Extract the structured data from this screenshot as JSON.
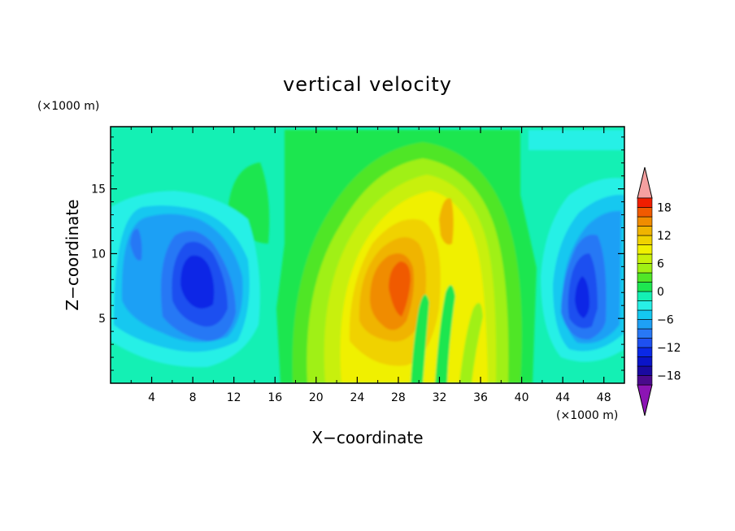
{
  "chart_data": {
    "type": "heatmap",
    "title": "vertical velocity",
    "xlabel": "X−coordinate",
    "ylabel": "Z−coordinate",
    "x_units": "(×1000 m)",
    "y_units": "(×1000 m)",
    "xlim": [
      0,
      50
    ],
    "ylim": [
      0,
      19.8
    ],
    "x_ticks": [
      4,
      8,
      12,
      16,
      20,
      24,
      28,
      32,
      36,
      40,
      44,
      48
    ],
    "y_ticks": [
      5,
      10,
      15
    ],
    "colorbar": {
      "levels": [
        -20,
        -18,
        -16,
        -14,
        -12,
        -10,
        -8,
        -6,
        -4,
        -2,
        0,
        2,
        4,
        6,
        8,
        10,
        12,
        14,
        16,
        18,
        20
      ],
      "labels": [
        18,
        12,
        6,
        0,
        -6,
        -12,
        -18
      ],
      "colors": [
        "#4a0a8c",
        "#1a0aa0",
        "#0a14c8",
        "#0a28e6",
        "#1e50f0",
        "#2878f5",
        "#1ea0f5",
        "#14c8f0",
        "#28f0e6",
        "#14f0b4",
        "#1ee650",
        "#50e628",
        "#a0f014",
        "#c8f00a",
        "#f0f000",
        "#f0d200",
        "#f0b400",
        "#f08c00",
        "#f05a00",
        "#f01e00"
      ],
      "extend_low_color": "#8c14b4",
      "extend_high_color": "#f5a0a0"
    }
  }
}
